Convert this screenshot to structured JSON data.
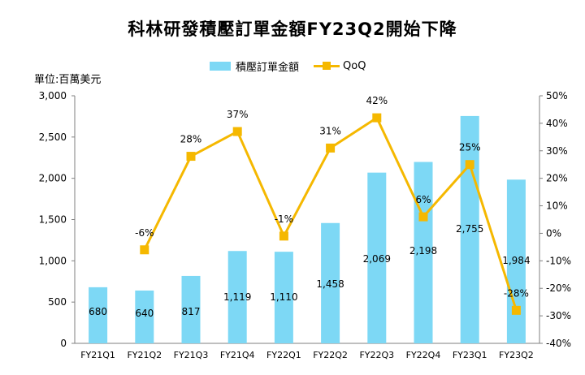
{
  "chart_data": {
    "type": "bar",
    "title": "科林研發積壓訂單金額FY23Q2開始下降",
    "unit_label": "單位:百萬美元",
    "categories": [
      "FY21Q1",
      "FY21Q2",
      "FY21Q3",
      "FY21Q4",
      "FY22Q1",
      "FY22Q2",
      "FY22Q3",
      "FY22Q4",
      "FY23Q1",
      "FY23Q2"
    ],
    "series": [
      {
        "name": "積壓訂單金額",
        "kind": "bar",
        "axis": "left",
        "color": "#7dd8f5",
        "values": [
          680,
          640,
          817,
          1119,
          1110,
          1458,
          2069,
          2198,
          2755,
          1984
        ],
        "labels": [
          "680",
          "640",
          "817",
          "1,119",
          "1,110",
          "1,458",
          "2,069",
          "2,198",
          "2,755",
          "1,984"
        ]
      },
      {
        "name": "QoQ",
        "kind": "line",
        "axis": "right",
        "color": "#f5b800",
        "values": [
          null,
          -6,
          28,
          37,
          -1,
          31,
          42,
          6,
          25,
          -28
        ],
        "labels": [
          "",
          "-6%",
          "28%",
          "37%",
          "-1%",
          "31%",
          "42%",
          "6%",
          "25%",
          "-28%"
        ],
        "highlight_color": "#e8262d"
      }
    ],
    "y_left": {
      "min": 0,
      "max": 3000,
      "ticks": [
        0,
        500,
        1000,
        1500,
        2000,
        2500,
        3000
      ],
      "tick_labels": [
        "0",
        "500",
        "1,000",
        "1,500",
        "2,000",
        "2,500",
        "3,000"
      ]
    },
    "y_right": {
      "min": -40,
      "max": 50,
      "ticks": [
        -40,
        -30,
        -20,
        -10,
        0,
        10,
        20,
        30,
        40,
        50
      ],
      "tick_labels": [
        "-40%",
        "-30%",
        "-20%",
        "-10%",
        "0%",
        "10%",
        "20%",
        "30%",
        "40%",
        "50%"
      ]
    },
    "legend_position": "top"
  }
}
